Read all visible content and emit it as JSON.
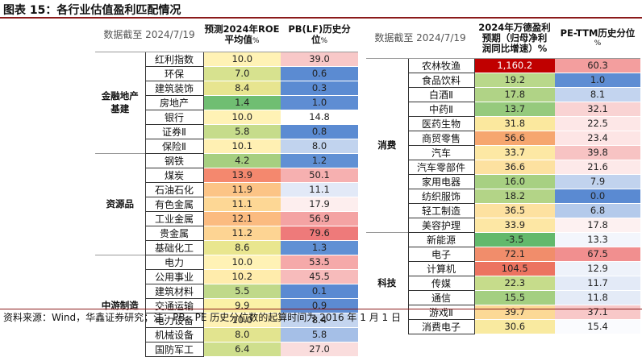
{
  "title": "图表 15：各行业估值盈利匹配情况",
  "footer": "资料来源：Wind，华鑫证券研究；注：PB、PE 历史分位数的起算时间为 2016 年 1 月 1 日",
  "left_table": {
    "date_label": "数据截至 2024/7/19",
    "col1_header": [
      "预测2024年ROE",
      "平均值",
      "%"
    ],
    "col2_header": [
      "PB(LF)历史分位",
      "%"
    ],
    "groups": [
      {
        "name": "金融地产\n基建",
        "rows": [
          {
            "industry": "红利指数",
            "v1": "10.0",
            "v2": "39.0",
            "c1": "#fff2b5",
            "c2": "#f8c8c8"
          },
          {
            "industry": "环保",
            "v1": "7.0",
            "v2": "0.6",
            "c1": "#d7e28f",
            "c2": "#5b8bd2"
          },
          {
            "industry": "建筑装饰",
            "v1": "8.4",
            "v2": "0.3",
            "c1": "#e7e590",
            "c2": "#5b8bd2"
          },
          {
            "industry": "房地产",
            "v1": "1.4",
            "v2": "1.0",
            "c1": "#70be72",
            "c2": "#5e8dd3"
          },
          {
            "industry": "银行",
            "v1": "10.0",
            "v2": "14.8",
            "c1": "#fff2b5",
            "c2": "#ffffff"
          },
          {
            "industry": "证券Ⅱ",
            "v1": "5.8",
            "v2": "0.8",
            "c1": "#c6dc8b",
            "c2": "#5b8bd2"
          },
          {
            "industry": "保险Ⅱ",
            "v1": "10.1",
            "v2": "8.0",
            "c1": "#fff0b3",
            "c2": "#c1d3ee"
          }
        ]
      },
      {
        "name": "资源品",
        "rows": [
          {
            "industry": "钢铁",
            "v1": "4.2",
            "v2": "1.2",
            "c1": "#a6cf80",
            "c2": "#6090d4"
          },
          {
            "industry": "煤炭",
            "v1": "13.9",
            "v2": "50.1",
            "c1": "#f4886e",
            "c2": "#f6b0b0"
          },
          {
            "industry": "石油石化",
            "v1": "11.9",
            "v2": "11.1",
            "c1": "#fcc486",
            "c2": "#e2e9f7"
          },
          {
            "industry": "有色金属",
            "v1": "11.1",
            "v2": "17.9",
            "c1": "#fdd795",
            "c2": "#fdeeee"
          },
          {
            "industry": "工业金属",
            "v1": "12.1",
            "v2": "56.9",
            "c1": "#fbbb80",
            "c2": "#f4a3a3"
          },
          {
            "industry": "贵金属",
            "v1": "11.2",
            "v2": "79.6",
            "c1": "#fdd493",
            "c2": "#ee7a7a"
          },
          {
            "industry": "基础化工",
            "v1": "8.6",
            "v2": "1.3",
            "c1": "#e9e68f",
            "c2": "#6090d4"
          }
        ]
      },
      {
        "name": "中游制造",
        "rows": [
          {
            "industry": "电力",
            "v1": "10.0",
            "v2": "53.5",
            "c1": "#fff2b5",
            "c2": "#f5a9a9"
          },
          {
            "industry": "公用事业",
            "v1": "10.2",
            "v2": "45.5",
            "c1": "#ffecac",
            "c2": "#f7bbbb"
          },
          {
            "industry": "建筑材料",
            "v1": "5.5",
            "v2": "0.1",
            "c1": "#c0d98a",
            "c2": "#5a8ad2"
          },
          {
            "industry": "交通运输",
            "v1": "9.9",
            "v2": "0.9",
            "c1": "#fbf1a6",
            "c2": "#5c8bd2"
          },
          {
            "industry": "电力设备",
            "v1": "10.0",
            "v2": "8.4",
            "c1": "#fff2b5",
            "c2": "#c4d5ef"
          },
          {
            "industry": "机械设备",
            "v1": "8.0",
            "v2": "5.8",
            "c1": "#e2e48f",
            "c2": "#a5bfe7"
          },
          {
            "industry": "国防军工",
            "v1": "6.4",
            "v2": "27.0",
            "c1": "#cfdf8d",
            "c2": "#fadddd"
          }
        ]
      }
    ]
  },
  "right_table": {
    "date_label": "数据截至 2024/7/19",
    "col1_header": [
      "2024年万德盈利",
      "预期（归母净利",
      "润同比增速）%"
    ],
    "col2_header": [
      "PE-TTM历史分位",
      "%"
    ],
    "groups": [
      {
        "name": "消费",
        "rows": [
          {
            "industry": "农林牧渔",
            "v1": "1,160.2",
            "v2": "60.3",
            "c1": "#c00000",
            "c2": "#f39e9e"
          },
          {
            "industry": "食品饮料",
            "v1": "19.2",
            "v2": "1.0",
            "c1": "#b9d88a",
            "c2": "#5e8dd3"
          },
          {
            "industry": "白酒Ⅱ",
            "v1": "17.8",
            "v2": "8.1",
            "c1": "#b0d386",
            "c2": "#c3d4ef"
          },
          {
            "industry": "中药Ⅱ",
            "v1": "13.7",
            "v2": "32.1",
            "c1": "#96ca7d",
            "c2": "#f9d3d3"
          },
          {
            "industry": "医药生物",
            "v1": "31.8",
            "v2": "22.5",
            "c1": "#fbe89e",
            "c2": "#fde7e7"
          },
          {
            "industry": "商贸零售",
            "v1": "56.6",
            "v2": "23.4",
            "c1": "#f6a66f",
            "c2": "#fde5e5"
          },
          {
            "industry": "汽车",
            "v1": "33.7",
            "v2": "39.8",
            "c1": "#fde8a4",
            "c2": "#f7c3c3"
          },
          {
            "industry": "汽车零部件",
            "v1": "36.6",
            "v2": "21.6",
            "c1": "#fde1a0",
            "c2": "#fde9e9"
          },
          {
            "industry": "家用电器",
            "v1": "16.0",
            "v2": "7.9",
            "c1": "#a7d082",
            "c2": "#c1d3ee"
          },
          {
            "industry": "纺织服饰",
            "v1": "18.2",
            "v2": "0.0",
            "c1": "#b3d487",
            "c2": "#5a8ad2"
          },
          {
            "industry": "轻工制造",
            "v1": "36.5",
            "v2": "6.8",
            "c1": "#fde1a0",
            "c2": "#b4caeb"
          },
          {
            "industry": "美容护理",
            "v1": "33.9",
            "v2": "17.8",
            "c1": "#fde7a4",
            "c2": "#fdf1f1"
          }
        ]
      },
      {
        "name": "科技",
        "rows": [
          {
            "industry": "新能源",
            "v1": "-3.5",
            "v2": "13.3",
            "c1": "#63b96c",
            "c2": "#f3f6fc"
          },
          {
            "industry": "电子",
            "v1": "72.1",
            "v2": "67.5",
            "c1": "#f18d6b",
            "c2": "#f18f8f"
          },
          {
            "industry": "计算机",
            "v1": "104.5",
            "v2": "12.9",
            "c1": "#ec7360",
            "c2": "#eef2fa"
          },
          {
            "industry": "传媒",
            "v1": "22.3",
            "v2": "11.7",
            "c1": "#c6dc8b",
            "c2": "#e3eaf7"
          },
          {
            "industry": "通信",
            "v1": "15.5",
            "v2": "11.8",
            "c1": "#a4cf81",
            "c2": "#e4ebf7"
          },
          {
            "industry": "游戏Ⅱ",
            "v1": "39.7",
            "v2": "37.1",
            "c1": "#fcd996",
            "c2": "#f8c8c8"
          },
          {
            "industry": "消费电子",
            "v1": "30.6",
            "v2": "15.4",
            "c1": "#f9eaa0",
            "c2": "#fafbfe"
          }
        ]
      }
    ]
  }
}
